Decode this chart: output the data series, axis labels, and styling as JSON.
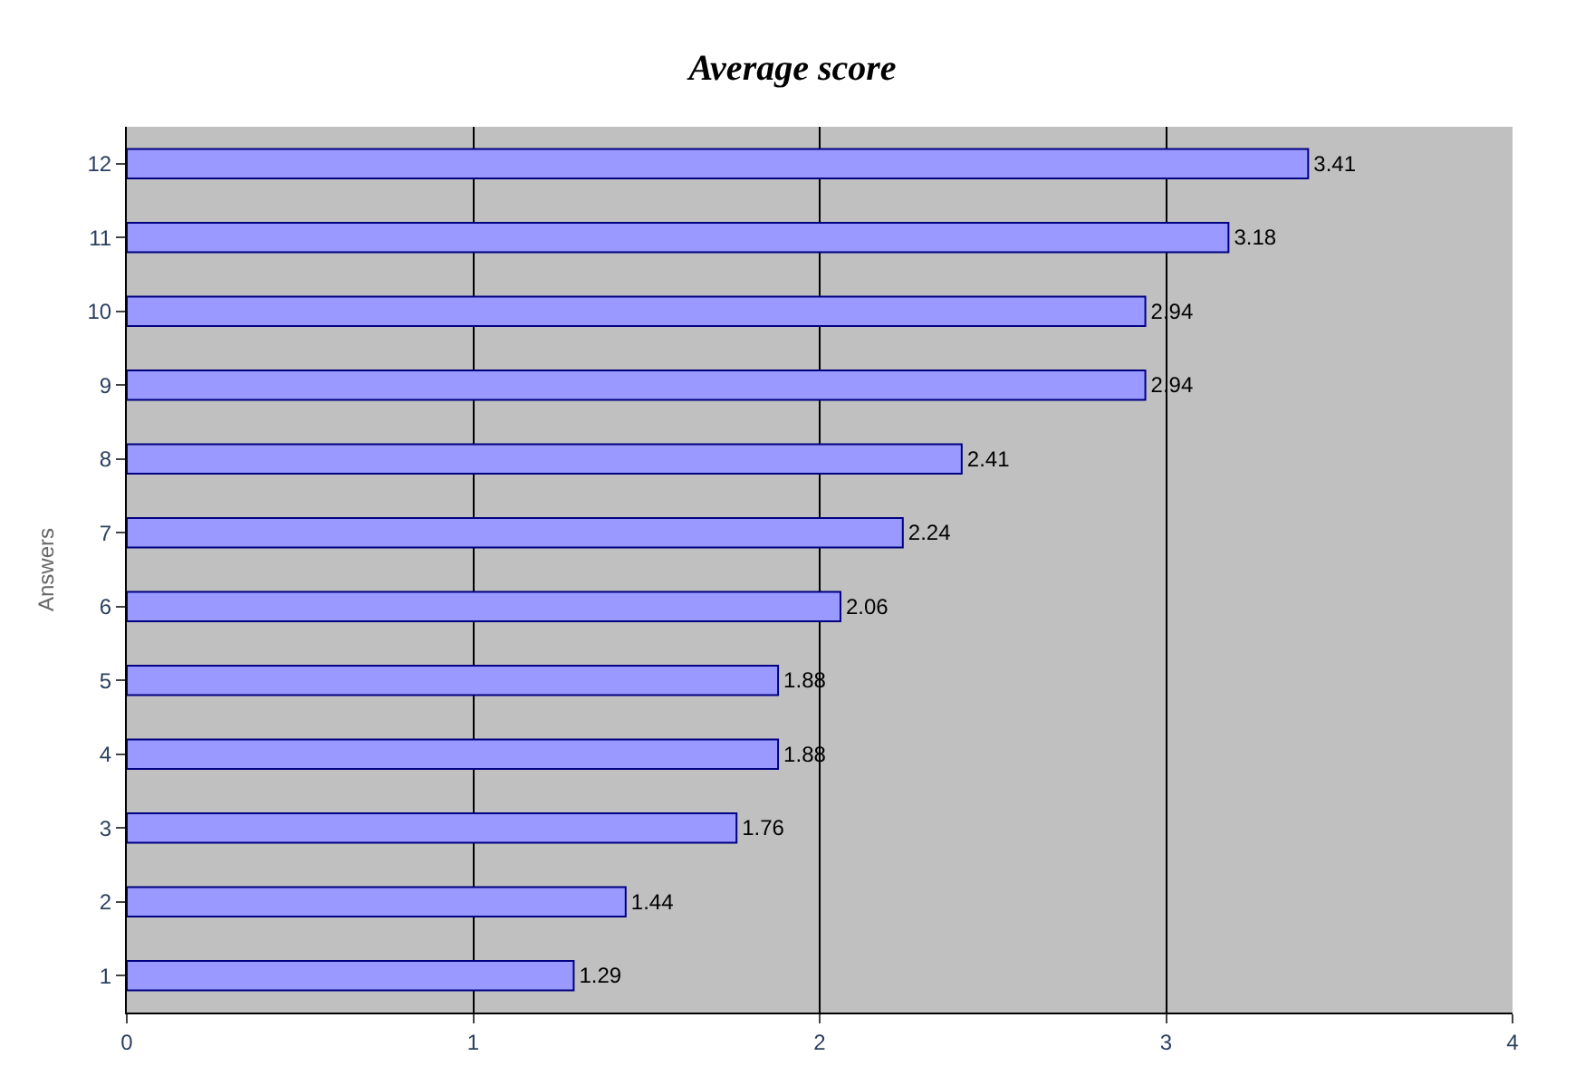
{
  "chart_data": {
    "type": "bar",
    "orientation": "horizontal",
    "title": "Average score",
    "ylabel": "Answers",
    "categories": [
      "12",
      "11",
      "10",
      "9",
      "8",
      "7",
      "6",
      "5",
      "4",
      "3",
      "2",
      "1"
    ],
    "values": [
      3.41,
      3.18,
      2.94,
      2.94,
      2.41,
      2.24,
      2.06,
      1.88,
      1.88,
      1.76,
      1.44,
      1.29
    ],
    "color": "#9999ff",
    "xlim": [
      0,
      4
    ],
    "xticks": [
      0,
      1,
      2,
      3,
      4
    ],
    "grid": "x",
    "data_labels": true
  }
}
